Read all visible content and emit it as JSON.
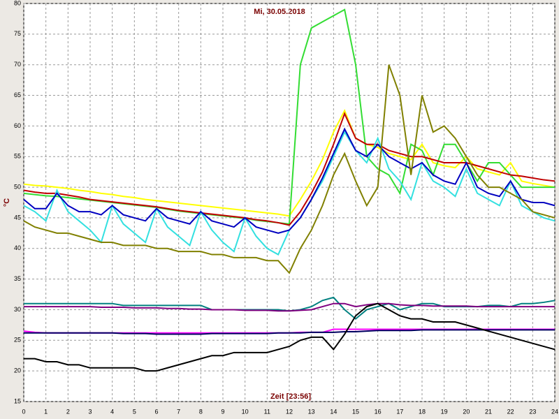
{
  "chart_data": {
    "type": "line",
    "title": "Mi, 30.05.2018",
    "xlabel": "Zeit [23:56]",
    "ylabel": "°C",
    "x": [
      0,
      0.5,
      1,
      1.5,
      2,
      2.5,
      3,
      3.5,
      4,
      4.5,
      5,
      5.5,
      6,
      6.5,
      7,
      7.5,
      8,
      8.5,
      9,
      9.5,
      10,
      10.5,
      11,
      11.5,
      12,
      12.5,
      13,
      13.5,
      14,
      14.5,
      15,
      15.5,
      16,
      16.5,
      17,
      17.5,
      18,
      18.5,
      19,
      19.5,
      20,
      20.5,
      21,
      21.5,
      22,
      22.5,
      23,
      23.5,
      24
    ],
    "series": [
      {
        "color": "#ffff00",
        "values": [
          50.5,
          50.3,
          50.2,
          50,
          49.8,
          49.5,
          49.3,
          49,
          48.8,
          48.5,
          48.3,
          48,
          47.8,
          47.6,
          47.4,
          47.2,
          47,
          46.8,
          46.6,
          46.4,
          46.2,
          46,
          45.8,
          45.6,
          45.3,
          48,
          51,
          54.5,
          59,
          62.5,
          58,
          57,
          56.5,
          55.5,
          55,
          54.5,
          57,
          54,
          53.5,
          53.2,
          55,
          53,
          52.5,
          52,
          54,
          51,
          50.6,
          50.3,
          50
        ]
      },
      {
        "color": "#33dd33",
        "values": [
          49,
          48.8,
          48.6,
          48.5,
          48.3,
          48.1,
          47.9,
          47.7,
          47.5,
          47.3,
          47.1,
          46.9,
          46.7,
          46.4,
          46.1,
          45.9,
          45.7,
          45.5,
          45.3,
          45.1,
          44.9,
          44.6,
          44.4,
          44.2,
          44,
          70,
          76,
          77,
          78,
          79,
          70,
          55,
          53,
          52,
          49,
          57,
          56,
          52,
          57,
          57,
          54,
          51,
          54,
          54,
          52,
          50,
          50,
          50,
          50
        ]
      },
      {
        "color": "#c00000",
        "values": [
          49.5,
          49.2,
          49,
          49,
          48.7,
          48.4,
          48,
          47.8,
          47.6,
          47.4,
          47.2,
          47,
          46.8,
          46.5,
          46.2,
          46,
          45.8,
          45.6,
          45.4,
          45.2,
          45,
          44.7,
          44.5,
          44.2,
          43.8,
          46,
          49,
          52.5,
          57,
          62,
          58,
          57,
          57,
          56,
          55.5,
          55,
          55,
          54.5,
          54,
          54,
          54,
          53.5,
          53,
          52.5,
          52,
          51.8,
          51.5,
          51.2,
          51
        ]
      },
      {
        "color": "#33e0e0",
        "values": [
          47,
          46,
          44.5,
          49.5,
          46,
          44.5,
          43,
          41,
          47,
          44,
          42.5,
          41,
          46.5,
          43.5,
          42,
          40.5,
          46,
          43,
          41,
          39.5,
          45,
          42,
          40,
          39,
          43,
          45,
          48,
          51,
          55,
          59,
          56,
          54,
          58,
          53,
          51,
          48,
          54,
          51,
          50,
          48.5,
          53,
          49,
          48,
          47,
          51,
          47,
          46,
          45,
          44.5
        ]
      },
      {
        "color": "#0000c0",
        "values": [
          48,
          46.5,
          46.5,
          49,
          47,
          46,
          46,
          45.5,
          47,
          45.5,
          45,
          44.5,
          46.5,
          45,
          44.5,
          44,
          46,
          44.5,
          44,
          43.5,
          45,
          43.5,
          43,
          42.5,
          43,
          45,
          48,
          51.5,
          55.5,
          59.5,
          56,
          55,
          57,
          55,
          54,
          53,
          54,
          52,
          51,
          50.5,
          54,
          50,
          49,
          48.5,
          51,
          48,
          47.5,
          47.5,
          47
        ]
      },
      {
        "color": "#808000",
        "values": [
          44.5,
          43.5,
          43,
          42.5,
          42.5,
          42,
          41.5,
          41,
          41,
          40.5,
          40.5,
          40.5,
          40,
          40,
          39.5,
          39.5,
          39.5,
          39,
          39,
          38.5,
          38.5,
          38.5,
          38,
          38,
          36,
          40,
          43,
          47,
          52,
          55.5,
          51,
          47,
          50,
          70,
          65,
          52,
          65,
          59,
          60,
          58,
          55,
          52,
          50,
          50,
          49,
          48,
          46,
          45.5,
          45
        ]
      },
      {
        "color": "#008080",
        "values": [
          31,
          31,
          31,
          31,
          31,
          31,
          31,
          31,
          31,
          30.7,
          30.7,
          30.7,
          30.7,
          30.7,
          30.7,
          30.7,
          30.7,
          30,
          30,
          30,
          30,
          30,
          30,
          30,
          29.8,
          30,
          30.5,
          31.5,
          32,
          30,
          28.5,
          30,
          30.5,
          31,
          30,
          30.5,
          31,
          31,
          30.5,
          30.5,
          30.5,
          30.5,
          30.7,
          30.7,
          30.5,
          31,
          31,
          31.2,
          31.5
        ]
      },
      {
        "color": "#800080",
        "values": [
          30.5,
          30.5,
          30.5,
          30.5,
          30.5,
          30.5,
          30.5,
          30.4,
          30.4,
          30.4,
          30.3,
          30.3,
          30.3,
          30.2,
          30.2,
          30.1,
          30.1,
          30,
          30,
          30,
          29.9,
          29.9,
          29.9,
          29.8,
          29.8,
          29.9,
          30,
          30.5,
          31,
          31,
          30.5,
          30.8,
          31,
          31,
          30.8,
          30.7,
          30.7,
          30.6,
          30.6,
          30.6,
          30.6,
          30.5,
          30.5,
          30.5,
          30.5,
          30.5,
          30.5,
          30.5,
          30.5
        ]
      },
      {
        "color": "#ff00ff",
        "values": [
          26.5,
          26.3,
          26.2,
          26.2,
          26.2,
          26.2,
          26.2,
          26.2,
          26.2,
          26.2,
          26.2,
          26.2,
          26.2,
          26.2,
          26.2,
          26.2,
          26.2,
          26.2,
          26.2,
          26.2,
          26.2,
          26.2,
          26.2,
          26.2,
          26.2,
          26.3,
          26.3,
          26.3,
          26.8,
          26.8,
          26.8,
          26.8,
          26.8,
          26.8,
          26.8,
          26.8,
          26.8,
          26.8,
          26.8,
          26.8,
          26.8,
          26.8,
          26.8,
          26.8,
          26.8,
          26.8,
          26.8,
          26.8,
          26.8
        ]
      },
      {
        "color": "#000060",
        "values": [
          26.2,
          26.2,
          26.2,
          26.2,
          26.2,
          26.2,
          26.2,
          26.2,
          26.2,
          26.1,
          26.1,
          26.1,
          26,
          26,
          26,
          26,
          26,
          26.1,
          26.1,
          26.1,
          26.1,
          26.1,
          26.1,
          26.2,
          26.2,
          26.2,
          26.3,
          26.3,
          26.3,
          26.4,
          26.4,
          26.5,
          26.6,
          26.6,
          26.6,
          26.6,
          26.7,
          26.7,
          26.7,
          26.7,
          26.7,
          26.7,
          26.7,
          26.7,
          26.7,
          26.7,
          26.7,
          26.7,
          26.7
        ]
      },
      {
        "color": "#000000",
        "values": [
          22,
          22,
          21.5,
          21.5,
          21,
          21,
          20.5,
          20.5,
          20.5,
          20.5,
          20.5,
          20,
          20,
          20.5,
          21,
          21.5,
          22,
          22.5,
          22.5,
          23,
          23,
          23,
          23,
          23.5,
          24,
          25,
          25.5,
          25.5,
          23.5,
          26,
          29,
          30.5,
          31,
          30,
          29,
          28.5,
          28.5,
          28,
          28,
          28,
          27.5,
          27,
          26.5,
          26,
          25.5,
          25,
          24.5,
          24,
          23.5
        ]
      }
    ],
    "xlim": [
      0,
      24
    ],
    "xticks": [
      0,
      1,
      2,
      3,
      4,
      5,
      6,
      7,
      8,
      9,
      10,
      11,
      12,
      13,
      14,
      15,
      16,
      17,
      18,
      19,
      20,
      21,
      22,
      23,
      24
    ],
    "ylim": [
      15,
      80
    ],
    "yticks": [
      15,
      20,
      25,
      30,
      35,
      40,
      45,
      50,
      55,
      60,
      65,
      70,
      75,
      80
    ],
    "grid": true
  }
}
